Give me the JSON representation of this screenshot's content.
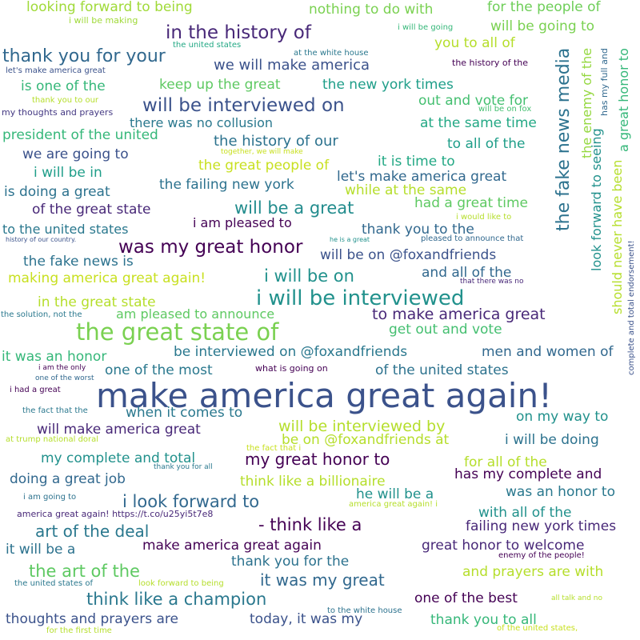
{
  "phrases": [
    {
      "text": "make america great again!",
      "color": "#3b528b"
    },
    {
      "text": "the great state of",
      "color": "#7ad151"
    },
    {
      "text": "i will be interviewed",
      "color": "#21918c"
    },
    {
      "text": "was my great honor",
      "color": "#440154"
    },
    {
      "text": "will be interviewed on",
      "color": "#3b528b"
    },
    {
      "text": "in the history of",
      "color": "#482878"
    },
    {
      "text": "thank you for your",
      "color": "#31688e"
    },
    {
      "text": "the fake news media",
      "color": "#2c728e"
    },
    {
      "text": "i will be on",
      "color": "#21918c"
    },
    {
      "text": "will be a great",
      "color": "#228c8d"
    },
    {
      "text": "i look forward to",
      "color": "#31688e"
    },
    {
      "text": "- think like a",
      "color": "#440154"
    },
    {
      "text": "think like a champion",
      "color": "#2a788e"
    },
    {
      "text": "the art of the",
      "color": "#5ec962"
    },
    {
      "text": "art of the deal",
      "color": "#2a788e"
    },
    {
      "text": "my great honor to",
      "color": "#440154"
    },
    {
      "text": "it was my great",
      "color": "#31688e"
    },
    {
      "text": "will be interviewed by",
      "color": "#b5de2b"
    },
    {
      "text": "to make america great",
      "color": "#482878"
    },
    {
      "text": "we will make america",
      "color": "#3b528b"
    },
    {
      "text": "the history of our",
      "color": "#2c728e"
    },
    {
      "text": "a great honor to",
      "color": "#35b779"
    },
    {
      "text": "look forward to seeing",
      "color": "#21918c"
    },
    {
      "text": "should never have been",
      "color": "#b5de2b"
    },
    {
      "text": "the enemy of the",
      "color": "#95d840"
    },
    {
      "text": "has my full and",
      "color": "#31688e"
    },
    {
      "text": "complete and total endorsement!",
      "color": "#3b528b"
    },
    {
      "text": "looking forward to being",
      "color": "#a0da39"
    },
    {
      "text": "nothing to do with",
      "color": "#7ad151"
    },
    {
      "text": "for the people of",
      "color": "#6ece58"
    },
    {
      "text": "will be going to",
      "color": "#7ad151"
    },
    {
      "text": "you to all of",
      "color": "#b5de2b"
    },
    {
      "text": "i will be making",
      "color": "#a0da39"
    },
    {
      "text": "i will be going",
      "color": "#35b779"
    },
    {
      "text": "the united states",
      "color": "#22a884"
    },
    {
      "text": "at the white house",
      "color": "#2a788e"
    },
    {
      "text": "the history of the",
      "color": "#440154"
    },
    {
      "text": "let's make america great",
      "color": "#3b528b"
    },
    {
      "text": "keep up the great",
      "color": "#5ec962"
    },
    {
      "text": "the new york times",
      "color": "#1f9e89"
    },
    {
      "text": "is one of the",
      "color": "#35b779"
    },
    {
      "text": "out and vote for",
      "color": "#44bf70"
    },
    {
      "text": "thank you to our",
      "color": "#b5de2b"
    },
    {
      "text": "will be on fox",
      "color": "#44bf70"
    },
    {
      "text": "my thoughts and prayers",
      "color": "#443983"
    },
    {
      "text": "there was no collusion",
      "color": "#2a788e"
    },
    {
      "text": "at the same time",
      "color": "#22a884"
    },
    {
      "text": "president of the united",
      "color": "#35b779"
    },
    {
      "text": "to all of the",
      "color": "#1f9e89"
    },
    {
      "text": "together, we will make",
      "color": "#c8e020"
    },
    {
      "text": "we are going to",
      "color": "#3b528b"
    },
    {
      "text": "the great people of",
      "color": "#c8e020"
    },
    {
      "text": "it is time to",
      "color": "#22a884"
    },
    {
      "text": "i will be in",
      "color": "#1f9e89"
    },
    {
      "text": "let's make america great",
      "color": "#31688e"
    },
    {
      "text": "the failing new york",
      "color": "#2c728e"
    },
    {
      "text": "is doing a great",
      "color": "#2c728e"
    },
    {
      "text": "while at the same",
      "color": "#b5de2b"
    },
    {
      "text": "had a great time",
      "color": "#5ec962"
    },
    {
      "text": "of the great state",
      "color": "#482878"
    },
    {
      "text": "i would like to",
      "color": "#b5de2b"
    },
    {
      "text": "i am pleased to",
      "color": "#440154"
    },
    {
      "text": "to the united states",
      "color": "#2a788e"
    },
    {
      "text": "thank you to the",
      "color": "#31688e"
    },
    {
      "text": "history of our country.",
      "color": "#3b528b"
    },
    {
      "text": "he is a great",
      "color": "#21918c"
    },
    {
      "text": "pleased to announce that",
      "color": "#31688e"
    },
    {
      "text": "the fake news is",
      "color": "#2c728e"
    },
    {
      "text": "will be on @foxandfriends",
      "color": "#3b528b"
    },
    {
      "text": "and all of the",
      "color": "#31688e"
    },
    {
      "text": "making america great again!",
      "color": "#c8e020"
    },
    {
      "text": "that there was no",
      "color": "#482878"
    },
    {
      "text": "in the great state",
      "color": "#b5de2b"
    },
    {
      "text": "the solution, not the",
      "color": "#2a788e"
    },
    {
      "text": "am pleased to announce",
      "color": "#5ec962"
    },
    {
      "text": "get out and vote",
      "color": "#44bf70"
    },
    {
      "text": "be interviewed on @foxandfriends",
      "color": "#2a788e"
    },
    {
      "text": "men and women of",
      "color": "#31688e"
    },
    {
      "text": "it was an honor",
      "color": "#35b779"
    },
    {
      "text": "i am the only",
      "color": "#440154"
    },
    {
      "text": "one of the most",
      "color": "#2a788e"
    },
    {
      "text": "what is going on",
      "color": "#440154"
    },
    {
      "text": "of the united states",
      "color": "#2c728e"
    },
    {
      "text": "one of the worst",
      "color": "#31688e"
    },
    {
      "text": "i had a great",
      "color": "#440154"
    },
    {
      "text": "the fact that the",
      "color": "#2a788e"
    },
    {
      "text": "when it comes to",
      "color": "#2a788e"
    },
    {
      "text": "on my way to",
      "color": "#21918c"
    },
    {
      "text": "will make america great",
      "color": "#482878"
    },
    {
      "text": "at trump national doral",
      "color": "#b5de2b"
    },
    {
      "text": "the fact that i",
      "color": "#c8e020"
    },
    {
      "text": "be on @foxandfriends at",
      "color": "#b5de2b"
    },
    {
      "text": "i will be doing",
      "color": "#2c728e"
    },
    {
      "text": "my complete and total",
      "color": "#21918c"
    },
    {
      "text": "thank you for all",
      "color": "#2a788e"
    },
    {
      "text": "for all of the",
      "color": "#b5de2b"
    },
    {
      "text": "doing a great job",
      "color": "#31688e"
    },
    {
      "text": "think like a billionaire",
      "color": "#b5de2b"
    },
    {
      "text": "has my complete and",
      "color": "#440154"
    },
    {
      "text": "i am going to",
      "color": "#2c728e"
    },
    {
      "text": "he will be a",
      "color": "#21918c"
    },
    {
      "text": "was an honor to",
      "color": "#2a788e"
    },
    {
      "text": "america great again! https://t.co/u25yi5t7e8",
      "color": "#482878"
    },
    {
      "text": "america great again! i",
      "color": "#b5de2b"
    },
    {
      "text": "with all of the",
      "color": "#21918c"
    },
    {
      "text": "failing new york times",
      "color": "#482878"
    },
    {
      "text": "it will be a",
      "color": "#2c728e"
    },
    {
      "text": "make america great again",
      "color": "#440154"
    },
    {
      "text": "great honor to welcome",
      "color": "#482878"
    },
    {
      "text": "enemy of the people!",
      "color": "#440154"
    },
    {
      "text": "thank you for the",
      "color": "#2c728e"
    },
    {
      "text": "and prayers are with",
      "color": "#b5de2b"
    },
    {
      "text": "the united states of",
      "color": "#2a788e"
    },
    {
      "text": "look forward to being",
      "color": "#b5de2b"
    },
    {
      "text": "one of the best",
      "color": "#440154"
    },
    {
      "text": "all talk and no",
      "color": "#b5de2b"
    },
    {
      "text": "thoughts and prayers are",
      "color": "#3b528b"
    },
    {
      "text": "today, it was my",
      "color": "#3b528b"
    },
    {
      "text": "to the white house",
      "color": "#2c728e"
    },
    {
      "text": "thank you to all",
      "color": "#35b779"
    },
    {
      "text": "for the first time",
      "color": "#b5de2b"
    },
    {
      "text": "of the united states,",
      "color": "#c8e020"
    }
  ]
}
